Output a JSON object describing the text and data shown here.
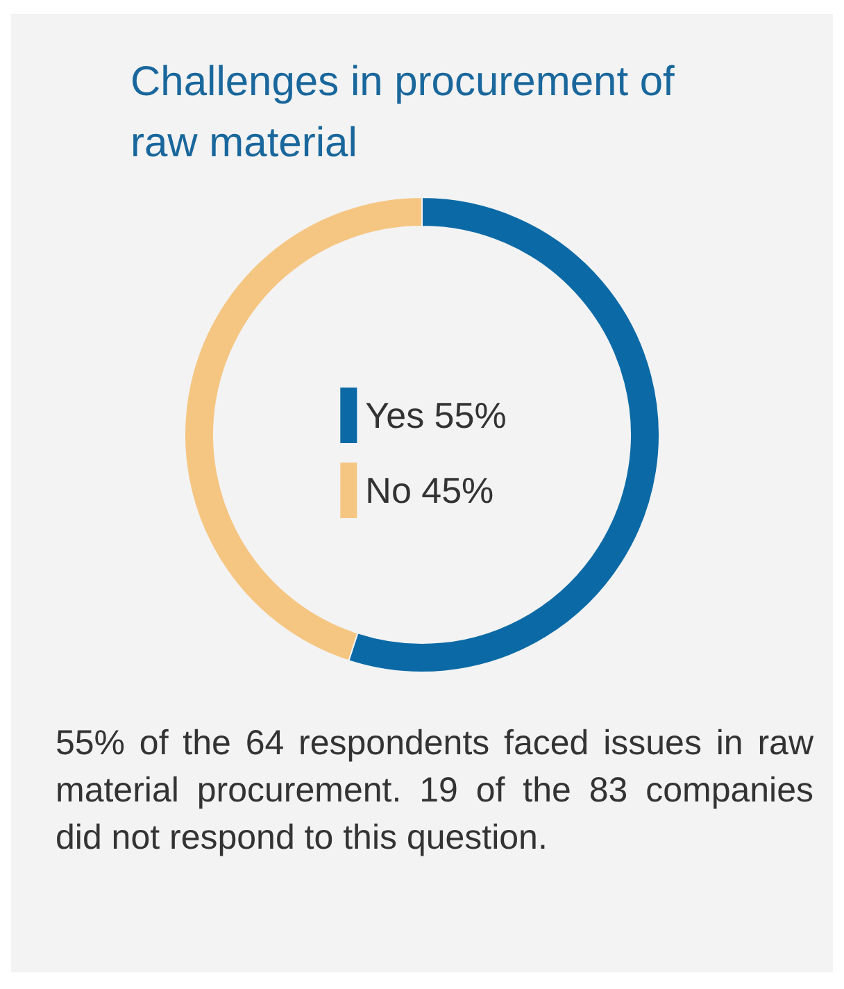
{
  "chart_data": {
    "type": "donut",
    "title": "Challenges in procurement of raw material",
    "categories": [
      "Yes",
      "No"
    ],
    "values": [
      55,
      45
    ],
    "value_labels": [
      "55%",
      "45%"
    ],
    "colors": [
      "#0b6aa6",
      "#f5c682"
    ],
    "legend": "center",
    "annotations": [
      "55% of the 64 respondents faced issues in raw material procurement. 19 of the 83 companies did not respond to this question."
    ]
  }
}
